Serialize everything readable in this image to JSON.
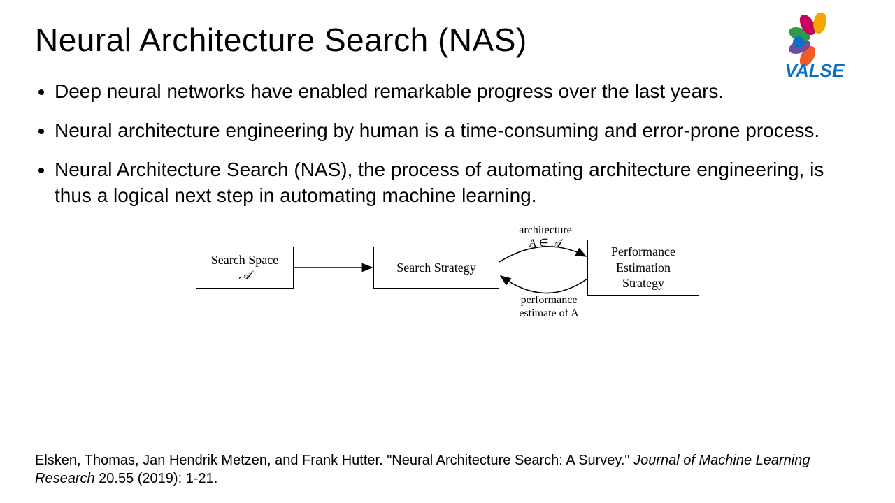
{
  "title": "Neural Architecture Search (NAS)",
  "bullets": [
    "Deep neural networks have enabled remarkable progress over the last years.",
    "Neural architecture engineering by human is a time-consuming and error-prone process.",
    "Neural Architecture Search (NAS), the process of automating architecture engineering, is thus a logical next step in automating machine learning."
  ],
  "diagram": {
    "box1_line1": "Search Space",
    "box1_line2": "𝒜",
    "box2": "Search Strategy",
    "box3_line1": "Performance",
    "box3_line2": "Estimation",
    "box3_line3": "Strategy",
    "top_label_line1": "architecture",
    "top_label_line2": "A ∈ 𝒜",
    "bottom_label_line1": "performance",
    "bottom_label_line2": "estimate of A",
    "box_border_color": "#000000",
    "arrow_color": "#000000",
    "font_family": "Times New Roman",
    "font_size": 18
  },
  "citation": {
    "authors": "Elsken, Thomas, Jan Hendrik Metzen, and Frank Hutter. ",
    "title_quoted": "\"Neural Architecture Search: A Survey.\"  ",
    "journal": "Journal of Machine Learning Research",
    "rest": " 20.55 (2019): 1-21."
  },
  "logo": {
    "text": "VALSE",
    "text_color": "#0b6fc2",
    "petals": [
      {
        "color": "#f15a24",
        "angle": -150
      },
      {
        "color": "#6b4fa0",
        "angle": -110
      },
      {
        "color": "#2e9b47",
        "angle": -70
      },
      {
        "color": "#c9005b",
        "angle": -30
      },
      {
        "color": "#f7a600",
        "angle": 10
      }
    ],
    "dot_color": "#0b6fc2"
  },
  "colors": {
    "background": "#ffffff",
    "text": "#000000"
  }
}
